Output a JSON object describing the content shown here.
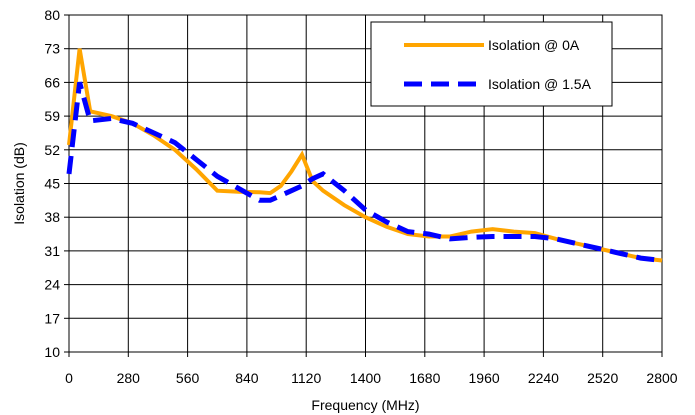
{
  "chart_data": {
    "type": "line",
    "title": "",
    "xlabel": "Frequency (MHz)",
    "ylabel": "Isolation (dB)",
    "xlim": [
      0,
      2800
    ],
    "ylim": [
      10,
      80
    ],
    "x_ticks": [
      0,
      280,
      560,
      840,
      1120,
      1400,
      1680,
      1960,
      2240,
      2520,
      2800
    ],
    "y_ticks": [
      10,
      17,
      24,
      31,
      38,
      45,
      52,
      59,
      66,
      73,
      80
    ],
    "x_tick_labels": [
      "0",
      "280",
      "560",
      "840",
      "1120",
      "1400",
      "1680",
      "1960",
      "2240",
      "2520",
      "2800"
    ],
    "y_tick_labels": [
      "10",
      "17",
      "24",
      "31",
      "38",
      "45",
      "52",
      "59",
      "66",
      "73",
      "80"
    ],
    "grid": true,
    "legend_position": "top-right",
    "series": [
      {
        "name": "Isolation @ 0A",
        "color": "#FFA500",
        "style": "solid",
        "x": [
          0,
          50,
          100,
          200,
          300,
          400,
          500,
          600,
          700,
          800,
          900,
          950,
          1000,
          1050,
          1100,
          1150,
          1200,
          1300,
          1400,
          1500,
          1600,
          1700,
          1800,
          1900,
          2000,
          2100,
          2200,
          2300,
          2400,
          2500,
          2600,
          2700,
          2800
        ],
        "y": [
          53,
          73,
          60,
          59,
          57.5,
          55,
          52,
          48,
          43.5,
          43.3,
          43.2,
          43,
          44.5,
          47.5,
          51,
          45.5,
          43.5,
          40.5,
          38,
          36,
          34.5,
          34,
          34,
          35,
          35.5,
          35,
          34.7,
          33.5,
          32.5,
          31.5,
          30.5,
          29.5,
          29
        ]
      },
      {
        "name": "Isolation @ 1.5A",
        "color": "#0000FF",
        "style": "dashed",
        "x": [
          0,
          50,
          100,
          200,
          300,
          400,
          500,
          600,
          700,
          800,
          900,
          950,
          1000,
          1050,
          1100,
          1150,
          1200,
          1300,
          1400,
          1500,
          1600,
          1700,
          1800,
          1900,
          2000,
          2100,
          2200,
          2300,
          2400,
          2500,
          2600,
          2700,
          2800
        ],
        "y": [
          47,
          66,
          58,
          58.5,
          57.5,
          55.5,
          53.5,
          50,
          46.5,
          44,
          41.5,
          41.5,
          42.5,
          43.5,
          44.5,
          46,
          47,
          43.5,
          39.5,
          37,
          35,
          34.5,
          33.5,
          33.8,
          34,
          34,
          34,
          33.5,
          32.5,
          31.5,
          30.5,
          29.5,
          29
        ]
      }
    ]
  }
}
